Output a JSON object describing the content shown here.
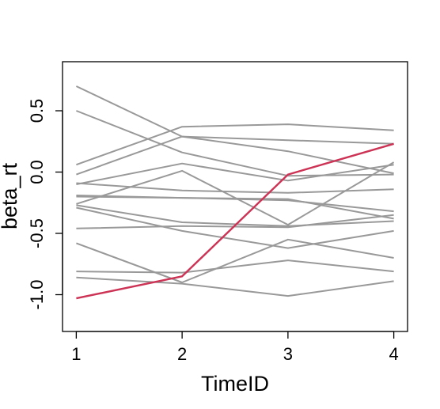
{
  "chart_data": {
    "type": "line",
    "title": "",
    "xlabel": "TimeID",
    "ylabel": "beta_rt",
    "x": [
      1,
      2,
      3,
      4
    ],
    "xlim": [
      0.87,
      4.13
    ],
    "ylim": [
      -1.3,
      0.9
    ],
    "xticks": [
      1,
      2,
      3,
      4
    ],
    "xtick_labels": [
      "1",
      "2",
      "3",
      "4"
    ],
    "yticks": [
      -1.0,
      -0.5,
      0.0,
      0.5
    ],
    "ytick_labels": [
      "-1.0",
      "-0.5",
      "0.0",
      "0.5"
    ],
    "grid": false,
    "legend": "none",
    "colors": {
      "background": "#999999",
      "highlight": "#cc3355"
    },
    "series": [
      {
        "values": [
          0.7,
          0.29,
          0.17,
          -0.01
        ]
      },
      {
        "values": [
          0.5,
          0.16,
          -0.03,
          -0.02
        ]
      },
      {
        "values": [
          0.06,
          0.37,
          0.39,
          0.34
        ]
      },
      {
        "values": [
          -0.02,
          0.29,
          0.26,
          0.23
        ]
      },
      {
        "values": [
          -0.1,
          0.07,
          -0.07,
          0.06
        ]
      },
      {
        "values": [
          -0.09,
          -0.15,
          -0.17,
          -0.14
        ]
      },
      {
        "values": [
          -0.19,
          -0.21,
          -0.22,
          -0.38
        ]
      },
      {
        "values": [
          -0.2,
          -0.21,
          -0.23,
          -0.32
        ]
      },
      {
        "values": [
          -0.26,
          0.01,
          -0.43,
          0.08
        ]
      },
      {
        "values": [
          -0.27,
          -0.41,
          -0.44,
          -0.4
        ]
      },
      {
        "values": [
          -0.29,
          -0.48,
          -0.62,
          -0.48
        ]
      },
      {
        "values": [
          -0.46,
          -0.44,
          -0.45,
          -0.35
        ]
      },
      {
        "values": [
          -0.58,
          -0.9,
          -0.55,
          -0.7
        ]
      },
      {
        "values": [
          -0.81,
          -0.82,
          -0.72,
          -0.81
        ]
      },
      {
        "values": [
          -0.86,
          -0.91,
          -1.01,
          -0.89
        ]
      },
      {
        "values": [
          -1.03,
          -0.85,
          -0.02,
          0.23
        ],
        "highlight": true
      }
    ]
  }
}
